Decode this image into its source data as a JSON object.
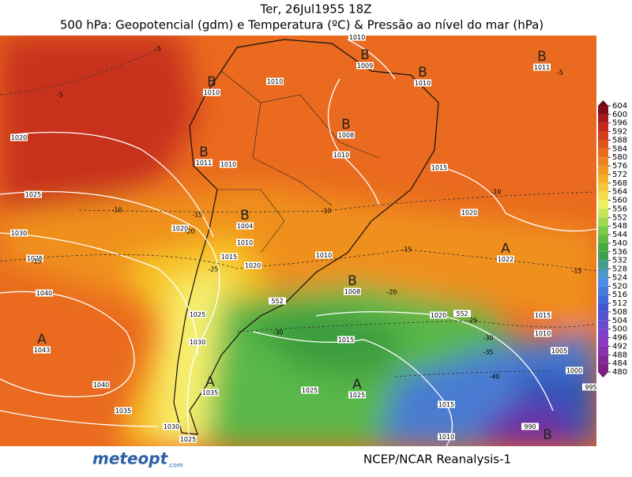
{
  "header": {
    "date": "Ter, 26Jul1955 18Z",
    "title": "500 hPa: Geopotencial (gdm) e Temperatura (ºC) & Pressão ao nível do mar (hPa)"
  },
  "colorbar": {
    "ticks": [
      480,
      484,
      488,
      492,
      496,
      500,
      504,
      508,
      512,
      516,
      520,
      524,
      528,
      532,
      536,
      540,
      544,
      548,
      552,
      556,
      560,
      564,
      568,
      572,
      576,
      580,
      584,
      588,
      592,
      596,
      600,
      604
    ]
  },
  "pressure_centers": [
    {
      "letter": "B",
      "value": 1009
    },
    {
      "letter": "B",
      "value": 1010
    },
    {
      "letter": "B",
      "value": 1011
    },
    {
      "letter": "B",
      "value": 1010
    },
    {
      "letter": "B",
      "value": 1008
    },
    {
      "letter": "B",
      "value": 1011
    },
    {
      "letter": "B",
      "value": 1004
    },
    {
      "letter": "B",
      "value": 1008
    },
    {
      "letter": "A",
      "value": 1022
    },
    {
      "letter": "A",
      "value": 1043
    },
    {
      "letter": "A",
      "value": 1035
    },
    {
      "letter": "A",
      "value": 1025
    },
    {
      "letter": "B",
      "value": 990
    }
  ],
  "isobar_labels": [
    1010,
    1010,
    1010,
    1010,
    1015,
    1020,
    1020,
    1025,
    1030,
    1025,
    1040,
    1020,
    1015,
    1010,
    1020,
    1010,
    1025,
    1030,
    1040,
    1035,
    1030,
    1025,
    1020,
    1015,
    1025,
    1015,
    1010,
    1015,
    1010,
    1005,
    1000,
    995
  ],
  "isotherm_labels": [
    -5,
    -5,
    -5,
    -10,
    -10,
    -10,
    -15,
    -20,
    -15,
    -15,
    -15,
    -25,
    -20,
    -25,
    -30,
    -30,
    -35,
    -40
  ],
  "geopotential_labels": [
    552,
    552
  ],
  "footer": {
    "logo": "meteopt",
    "logo_suffix": ".com",
    "source": "NCEP/NCAR Reanalysis-1"
  }
}
